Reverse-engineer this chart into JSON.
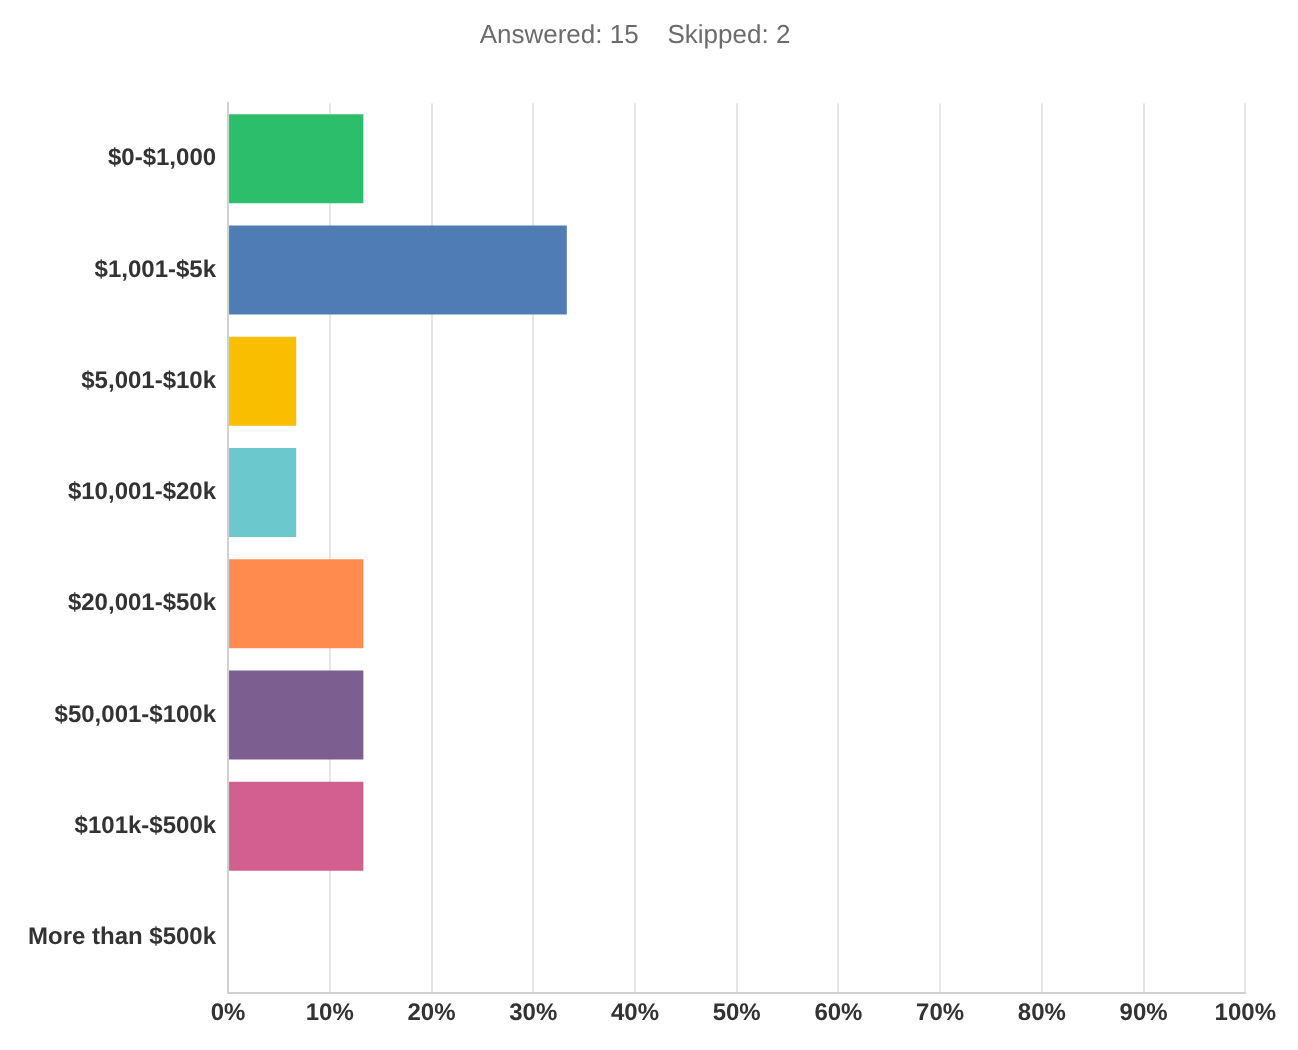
{
  "chart_data": {
    "type": "bar",
    "orientation": "horizontal",
    "title": "Answered: 15    Skipped: 2",
    "categories": [
      "$0-$1,000",
      "$1,001-$5k",
      "$5,001-$10k",
      "$10,001-$20k",
      "$20,001-$50k",
      "$50,001-$100k",
      "$101k-$500k",
      "More than $500k"
    ],
    "values": [
      13.3,
      33.3,
      6.7,
      6.7,
      13.3,
      13.3,
      13.3,
      0
    ],
    "colors": [
      "#2dbe6c",
      "#507cb6",
      "#f9be00",
      "#6bc8cd",
      "#ff8b4f",
      "#7d5e90",
      "#d25f90",
      "#888888"
    ],
    "xlim": [
      0,
      100
    ],
    "xticks": [
      {
        "value": 0,
        "label": "0%"
      },
      {
        "value": 10,
        "label": "10%"
      },
      {
        "value": 20,
        "label": "20%"
      },
      {
        "value": 30,
        "label": "30%"
      },
      {
        "value": 40,
        "label": "40%"
      },
      {
        "value": 50,
        "label": "50%"
      },
      {
        "value": 60,
        "label": "60%"
      },
      {
        "value": 70,
        "label": "70%"
      },
      {
        "value": 80,
        "label": "80%"
      },
      {
        "value": 90,
        "label": "90%"
      },
      {
        "value": 100,
        "label": "100%"
      }
    ],
    "grid": "x",
    "legend": false
  }
}
